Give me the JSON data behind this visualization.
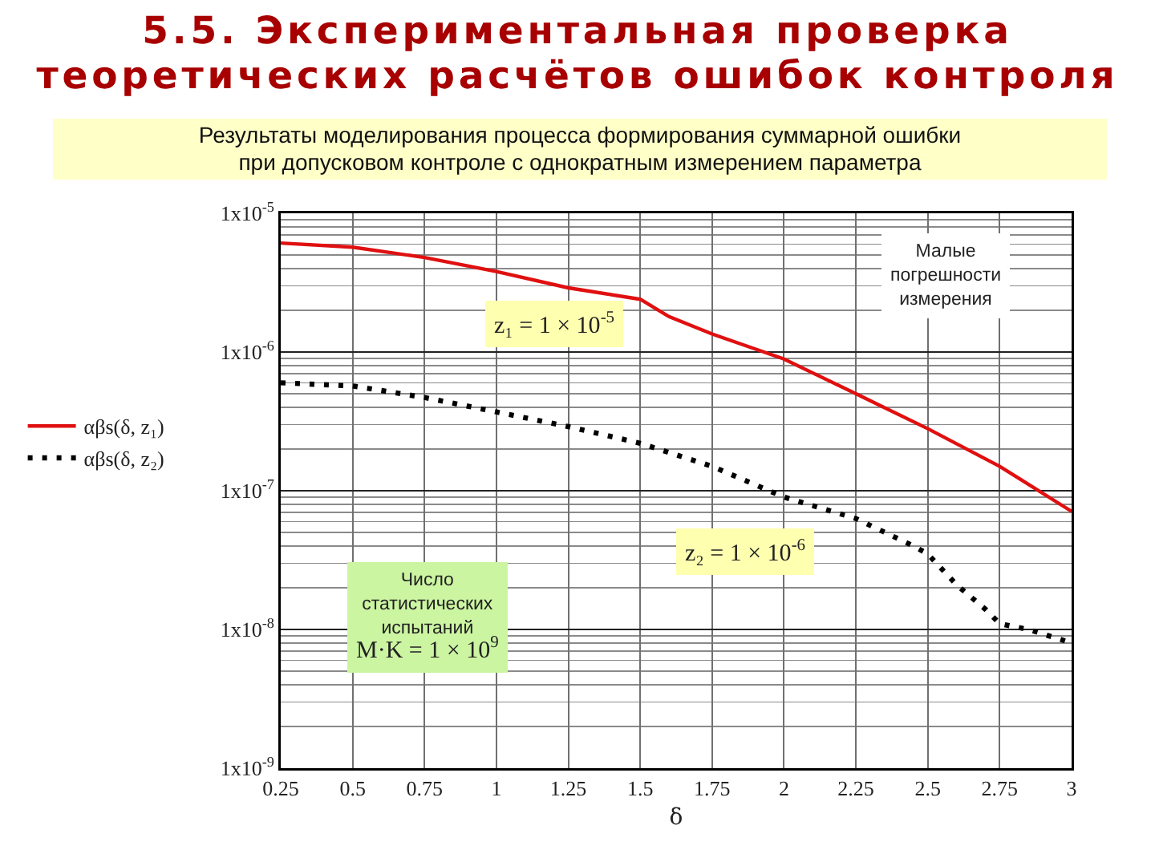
{
  "chart_data": {
    "type": "line",
    "title": "5.5. Экспериментальная проверка\nтеоретических расчётов ошибок контроля",
    "subtitle": "Результаты моделирования процесса формирования суммарной ошибки\nпри допусковом контроле с однократным измерением параметра",
    "xlabel": "δ",
    "annotations": [
      "Малые\nпогрешности\nизмерения",
      "z₁ = 1 × 10$^{-5}$",
      "z₂ = 1 × 10$^{-6}$",
      "Число\nстатистических\nиспытаний\nM·K = 1 × 10$^{9}$"
    ],
    "series": [
      {
        "name": "αβs(δ, z₁)",
        "color": "#e01010",
        "line_style": "solid",
        "x": [
          0.25,
          0.5,
          0.75,
          1,
          1.25,
          1.5,
          1.6,
          1.75,
          2,
          2.25,
          2.5,
          2.75,
          3
        ],
        "values": [
          6.1e-06,
          5.7e-06,
          4.8e-06,
          3.8e-06,
          2.9e-06,
          2.4e-06,
          1.8e-06,
          1.35e-06,
          8.9e-07,
          5e-07,
          2.8e-07,
          1.5e-07,
          7.1e-08
        ]
      },
      {
        "name": "αβs(δ, z₂)",
        "color": "#000000",
        "line_style": "dotted",
        "x": [
          0.25,
          0.5,
          0.75,
          1,
          1.25,
          1.5,
          1.75,
          2,
          2.25,
          2.45,
          2.5,
          2.6,
          2.7,
          2.75,
          2.85,
          3
        ],
        "values": [
          6e-07,
          5.7e-07,
          4.7e-07,
          3.7e-07,
          2.9e-07,
          2.2e-07,
          1.5e-07,
          9e-08,
          6.3e-08,
          4e-08,
          3.5e-08,
          2.1e-08,
          1.4e-08,
          1.1e-08,
          1e-08,
          8e-09
        ]
      }
    ],
    "xlim": [
      0.25,
      3
    ],
    "xticks": [
      0.25,
      0.5,
      0.75,
      1,
      1.25,
      1.5,
      1.75,
      2,
      2.25,
      2.5,
      2.75,
      3
    ],
    "ylim": [
      1e-09,
      1e-05
    ],
    "yticks": [
      {
        "value": 1e-09,
        "label": "1x10$^{-9}$"
      },
      {
        "value": 1e-08,
        "label": "1x10$^{-8}$"
      },
      {
        "value": 1e-07,
        "label": "1x10$^{-7}$"
      },
      {
        "value": 1e-06,
        "label": "1x10$^{-6}$"
      },
      {
        "value": 1e-05,
        "label": "1x10$^{-5}$"
      }
    ],
    "log": true,
    "grid": true,
    "legend": "left"
  }
}
